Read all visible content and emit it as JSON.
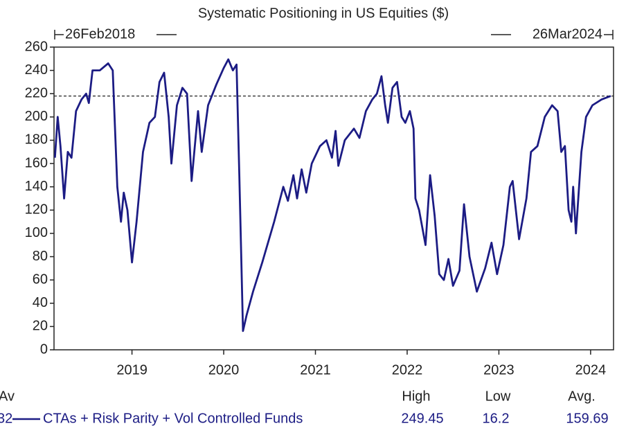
{
  "chart_data": {
    "type": "line",
    "title": "Systematic Positioning in US Equities ($)",
    "start_label": "26Feb2018",
    "end_label": "26Mar2024",
    "xlim": [
      2018.15,
      2024.25
    ],
    "xticks": [
      2019,
      2020,
      2021,
      2022,
      2023,
      2024
    ],
    "ylim": [
      0,
      260
    ],
    "yticks": [
      0,
      20,
      40,
      60,
      80,
      100,
      120,
      140,
      160,
      180,
      200,
      220,
      240,
      260
    ],
    "reference_line": 218,
    "x": [
      2018.16,
      2018.19,
      2018.22,
      2018.26,
      2018.3,
      2018.34,
      2018.39,
      2018.45,
      2018.5,
      2018.53,
      2018.57,
      2018.65,
      2018.74,
      2018.79,
      2018.84,
      2018.88,
      2018.91,
      2018.95,
      2019.0,
      2019.05,
      2019.12,
      2019.19,
      2019.25,
      2019.3,
      2019.35,
      2019.4,
      2019.43,
      2019.49,
      2019.55,
      2019.6,
      2019.65,
      2019.72,
      2019.76,
      2019.83,
      2019.92,
      2020.0,
      2020.05,
      2020.1,
      2020.14,
      2020.17,
      2020.21,
      2020.25,
      2020.32,
      2020.42,
      2020.55,
      2020.65,
      2020.7,
      2020.76,
      2020.8,
      2020.85,
      2020.9,
      2020.96,
      2021.05,
      2021.12,
      2021.18,
      2021.22,
      2021.25,
      2021.32,
      2021.42,
      2021.48,
      2021.55,
      2021.62,
      2021.67,
      2021.72,
      2021.76,
      2021.79,
      2021.84,
      2021.89,
      2021.94,
      2021.98,
      2022.03,
      2022.07,
      2022.09,
      2022.13,
      2022.2,
      2022.25,
      2022.3,
      2022.35,
      2022.4,
      2022.45,
      2022.5,
      2022.57,
      2022.62,
      2022.68,
      2022.76,
      2022.85,
      2022.92,
      2022.98,
      2023.05,
      2023.12,
      2023.15,
      2023.22,
      2023.3,
      2023.35,
      2023.42,
      2023.5,
      2023.58,
      2023.64,
      2023.68,
      2023.72,
      2023.76,
      2023.79,
      2023.81,
      2023.84,
      2023.9,
      2023.95,
      2024.02,
      2024.12,
      2024.22
    ],
    "series": [
      {
        "name": "CTAs + Risk Parity + Vol Controlled Funds",
        "color": "#1c1c84",
        "values": [
          165,
          200,
          175,
          130,
          170,
          165,
          205,
          215,
          220,
          212,
          240,
          240,
          246,
          240,
          140,
          110,
          135,
          120,
          75,
          110,
          170,
          195,
          200,
          230,
          238,
          200,
          160,
          210,
          225,
          220,
          145,
          205,
          170,
          210,
          228,
          242,
          249.45,
          240,
          245,
          150,
          16.2,
          30,
          50,
          75,
          110,
          140,
          128,
          150,
          130,
          155,
          135,
          160,
          175,
          180,
          165,
          188,
          158,
          180,
          190,
          182,
          205,
          215,
          220,
          235,
          210,
          195,
          225,
          230,
          200,
          195,
          205,
          190,
          130,
          120,
          90,
          150,
          115,
          65,
          60,
          78,
          55,
          68,
          125,
          80,
          50,
          70,
          92,
          65,
          90,
          140,
          145,
          95,
          130,
          170,
          175,
          200,
          210,
          205,
          170,
          175,
          120,
          110,
          140,
          100,
          170,
          200,
          210,
          215,
          218
        ]
      }
    ],
    "cropped_labels": [
      "Av",
      "32"
    ],
    "stats": {
      "headers": [
        "High",
        "Low",
        "Avg."
      ],
      "values": [
        249.45,
        16.2,
        159.69
      ]
    }
  }
}
